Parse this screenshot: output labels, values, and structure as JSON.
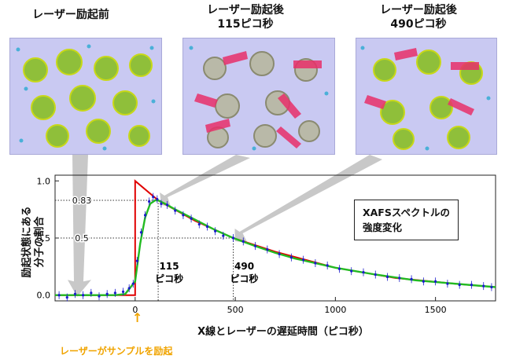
{
  "panels": [
    {
      "title_line1": "レーザー励起前",
      "title_line2": ""
    },
    {
      "title_line1": "レーザー励起後",
      "title_line2": "115ピコ秒"
    },
    {
      "title_line1": "レーザー励起後",
      "title_line2": "490ピコ秒"
    }
  ],
  "chart_data": {
    "type": "line",
    "xlabel": "X線とレーザーの遅延時間（ピコ秒）",
    "ylabel_line1": "励起状態にある",
    "ylabel_line2": "分子の割合",
    "xlim": [
      -400,
      1800
    ],
    "ylim": [
      -0.05,
      1.05
    ],
    "x_ticks": [
      0,
      500,
      1000,
      1500
    ],
    "y_ticks": [
      0.0,
      0.5,
      1.0
    ],
    "y_tick_labels": [
      "0.0",
      "0.5",
      "1.0"
    ],
    "reference_lines": [
      {
        "y": 0.83,
        "label": "0.83",
        "x": 115
      },
      {
        "y": 0.5,
        "label": "0.5",
        "x": 490
      }
    ],
    "delay_labels": [
      {
        "x": 115,
        "line1": "115",
        "line2": "ピコ秒"
      },
      {
        "x": 490,
        "line1": "490",
        "line2": "ピコ秒"
      }
    ],
    "series": [
      {
        "role": "model",
        "color": "#e00000",
        "x": [
          -400,
          0,
          0,
          115,
          300,
          490,
          700,
          1000,
          1300,
          1600,
          1800
        ],
        "values": [
          0,
          0,
          1.0,
          0.83,
          0.65,
          0.5,
          0.38,
          0.24,
          0.15,
          0.1,
          0.07
        ]
      },
      {
        "role": "fit",
        "color": "#22bb22",
        "x": [
          -400,
          -100,
          -50,
          0,
          25,
          50,
          75,
          100,
          115,
          150,
          200,
          300,
          400,
          490,
          600,
          700,
          800,
          1000,
          1200,
          1400,
          1600,
          1800
        ],
        "values": [
          0,
          0,
          0.01,
          0.12,
          0.45,
          0.68,
          0.8,
          0.83,
          0.83,
          0.8,
          0.75,
          0.66,
          0.57,
          0.5,
          0.43,
          0.37,
          0.32,
          0.24,
          0.18,
          0.13,
          0.1,
          0.07
        ]
      },
      {
        "role": "data",
        "color": "#1a1acc",
        "x": [
          -380,
          -340,
          -300,
          -260,
          -220,
          -180,
          -140,
          -100,
          -60,
          -30,
          -10,
          10,
          30,
          50,
          70,
          90,
          110,
          130,
          160,
          200,
          240,
          280,
          320,
          360,
          400,
          440,
          490,
          540,
          600,
          660,
          720,
          780,
          840,
          900,
          960,
          1020,
          1080,
          1140,
          1200,
          1260,
          1320,
          1380,
          1440,
          1500,
          1560,
          1620,
          1680,
          1740,
          1780
        ],
        "values": [
          0.0,
          -0.02,
          0.01,
          0.0,
          0.02,
          -0.01,
          0.01,
          0.02,
          0.03,
          0.06,
          0.1,
          0.3,
          0.55,
          0.7,
          0.82,
          0.86,
          0.84,
          0.8,
          0.79,
          0.74,
          0.7,
          0.67,
          0.62,
          0.6,
          0.56,
          0.52,
          0.5,
          0.47,
          0.43,
          0.4,
          0.36,
          0.33,
          0.31,
          0.28,
          0.26,
          0.23,
          0.21,
          0.2,
          0.18,
          0.16,
          0.15,
          0.14,
          0.12,
          0.12,
          0.1,
          0.09,
          0.09,
          0.08,
          0.07
        ]
      }
    ]
  },
  "legend": {
    "line1": "XAFSスペクトルの",
    "line2": "強度変化"
  },
  "laser_label": "レーザーがサンプルを励起",
  "laser_arrow": "↑"
}
